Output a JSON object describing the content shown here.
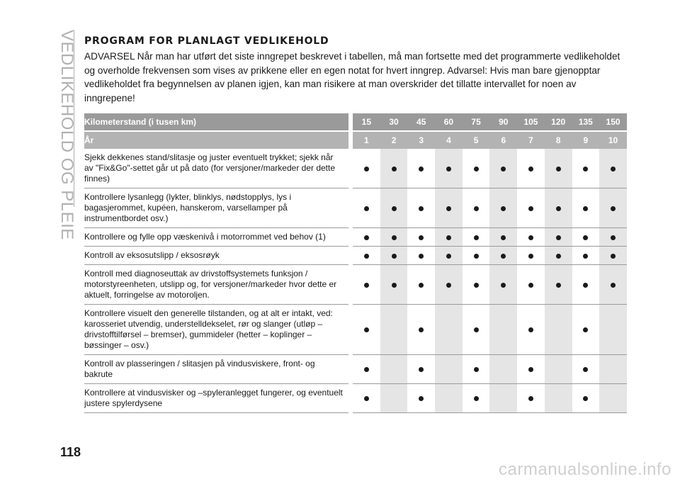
{
  "side_title": "VEDLIKEHOLD OG PLEIE",
  "heading": "PROGRAM FOR PLANLAGT VEDLIKEHOLD",
  "intro": "ADVARSEL Når man har utført det siste inngrepet beskrevet i tabellen, må man fortsette med det programmerte vedlikeholdet og overholde frekvensen som vises av prikkene eller en egen notat for hvert inngrep. Advarsel: Hvis man bare gjenopptar vedlikeholdet fra begynnelsen av planen igjen, kan man risikere at man overskrider det tillatte intervallet for noen av inngrepene!",
  "table": {
    "km_label": "Kilometerstand (i tusen km)",
    "year_label": "År",
    "km": [
      "15",
      "30",
      "45",
      "60",
      "75",
      "90",
      "105",
      "120",
      "135",
      "150"
    ],
    "years": [
      "1",
      "2",
      "3",
      "4",
      "5",
      "6",
      "7",
      "8",
      "9",
      "10"
    ],
    "rows": [
      {
        "text": "Sjekk dekkenes stand/slitasje og juster eventuelt trykket; sjekk når av \"Fix&Go\"-settet går ut på dato (for versjoner/markeder der dette finnes)",
        "marks": [
          1,
          1,
          1,
          1,
          1,
          1,
          1,
          1,
          1,
          1
        ]
      },
      {
        "text": "Kontrollere lysanlegg (lykter, blinklys, nødstopplys, lys i bagasjerommet, kupéen, hanskerom, varsellamper på instrumentbordet osv.)",
        "marks": [
          1,
          1,
          1,
          1,
          1,
          1,
          1,
          1,
          1,
          1
        ]
      },
      {
        "text": "Kontrollere og fylle opp væskenivå i motorrommet ved behov (1)",
        "marks": [
          1,
          1,
          1,
          1,
          1,
          1,
          1,
          1,
          1,
          1
        ]
      },
      {
        "text": "Kontroll av eksosutslipp / eksosrøyk",
        "marks": [
          1,
          1,
          1,
          1,
          1,
          1,
          1,
          1,
          1,
          1
        ]
      },
      {
        "text": "Kontroll med diagnoseuttak av drivstoffsystemets funksjon / motorstyreenheten, utslipp og, for versjoner/markeder hvor dette er aktuelt, forringelse av motoroljen.",
        "marks": [
          1,
          1,
          1,
          1,
          1,
          1,
          1,
          1,
          1,
          1
        ]
      },
      {
        "text": "Kontrollere visuelt den generelle tilstanden, og at alt er intakt, ved: karosseriet utvendig, understelldekselet, rør og slanger (utløp – drivstofftilførsel – bremser), gummideler (hetter – koplinger – bøssinger – osv.)",
        "marks": [
          1,
          0,
          1,
          0,
          1,
          0,
          1,
          0,
          1,
          0
        ]
      },
      {
        "text": "Kontroll av plasseringen / slitasjen på vindusviskere, front- og bakrute",
        "marks": [
          1,
          0,
          1,
          0,
          1,
          0,
          1,
          0,
          1,
          0
        ]
      },
      {
        "text": "Kontrollere at vindusvisker og –spyleranlegget fungerer, og eventuelt justere spylerdysene",
        "marks": [
          1,
          0,
          1,
          0,
          1,
          0,
          1,
          0,
          1,
          0
        ]
      }
    ]
  },
  "page_number": "118",
  "watermark": "carmanualsonline.info"
}
